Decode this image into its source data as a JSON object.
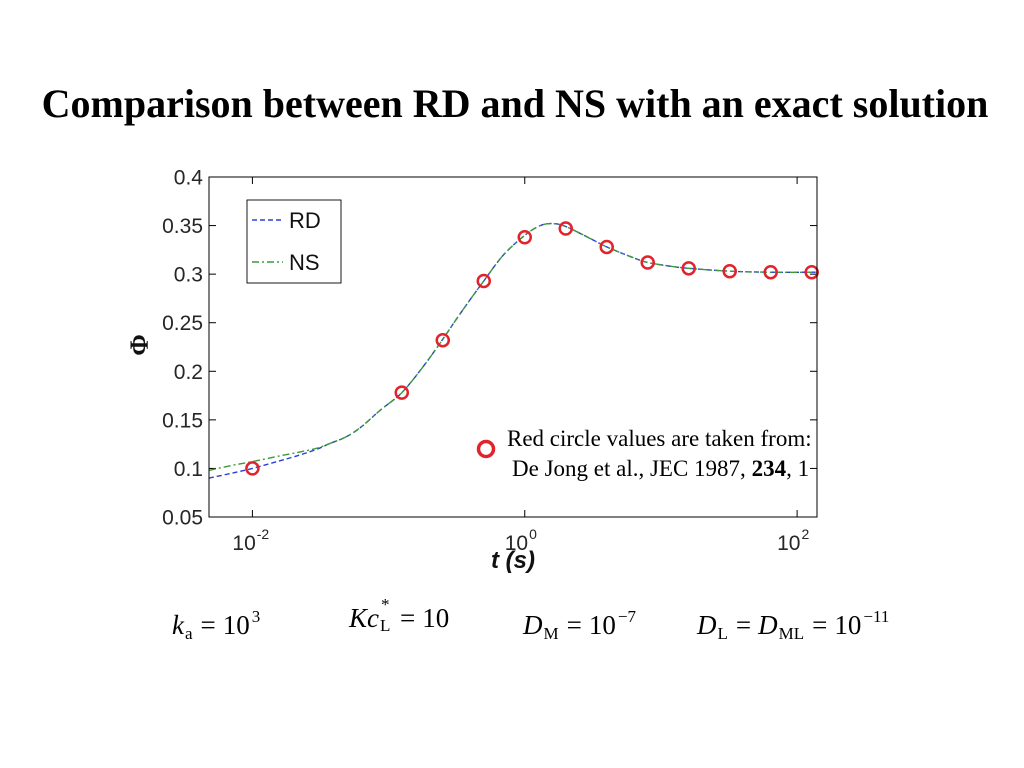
{
  "slide": {
    "title": "Comparison between RD and NS with an exact solution"
  },
  "chart_data": {
    "type": "line",
    "xlabel": "t (s)",
    "ylabel": "Φ",
    "xscale": "log",
    "xlim": [
      0.0048,
      140
    ],
    "ylim": [
      0.05,
      0.4
    ],
    "grid": false,
    "legend_position": "top-left",
    "xticks": [
      {
        "value": 0.01,
        "base": "10",
        "exp": "-2"
      },
      {
        "value": 1,
        "base": "10",
        "exp": "0"
      },
      {
        "value": 100,
        "base": "10",
        "exp": "2"
      }
    ],
    "yticks": [
      {
        "value": 0.05,
        "label": "0.05"
      },
      {
        "value": 0.1,
        "label": "0.1"
      },
      {
        "value": 0.15,
        "label": "0.15"
      },
      {
        "value": 0.2,
        "label": "0.2"
      },
      {
        "value": 0.25,
        "label": "0.25"
      },
      {
        "value": 0.3,
        "label": "0.3"
      },
      {
        "value": 0.35,
        "label": "0.35"
      },
      {
        "value": 0.4,
        "label": "0.4"
      }
    ],
    "series": [
      {
        "name": "RD",
        "dash": "dashed",
        "color": "#2a3fd6",
        "x": [
          0.0048,
          0.007,
          0.01,
          0.016,
          0.0225,
          0.03,
          0.0375,
          0.048,
          0.062,
          0.087,
          0.125,
          0.18,
          0.25,
          0.35,
          0.5,
          0.7,
          1,
          1.3,
          1.6,
          2,
          3,
          4,
          6,
          8,
          12,
          16,
          32,
          64,
          140
        ],
        "y": [
          0.09,
          0.095,
          0.1,
          0.108,
          0.114,
          0.12,
          0.126,
          0.132,
          0.142,
          0.16,
          0.178,
          0.205,
          0.233,
          0.263,
          0.293,
          0.32,
          0.34,
          0.35,
          0.352,
          0.349,
          0.337,
          0.328,
          0.318,
          0.312,
          0.308,
          0.306,
          0.303,
          0.302,
          0.302
        ]
      },
      {
        "name": "NS",
        "dash": "dash-dot",
        "color": "#3c9a3c",
        "x": [
          0.0048,
          0.007,
          0.01,
          0.016,
          0.0225,
          0.03,
          0.0375,
          0.048,
          0.062,
          0.087,
          0.125,
          0.18,
          0.25,
          0.35,
          0.5,
          0.7,
          1,
          1.3,
          1.6,
          2,
          3,
          4,
          6,
          8,
          12,
          16,
          32,
          64,
          140
        ],
        "y": [
          0.098,
          0.103,
          0.107,
          0.113,
          0.117,
          0.121,
          0.126,
          0.132,
          0.142,
          0.16,
          0.178,
          0.205,
          0.233,
          0.263,
          0.293,
          0.32,
          0.34,
          0.35,
          0.352,
          0.349,
          0.337,
          0.328,
          0.318,
          0.312,
          0.308,
          0.306,
          0.303,
          0.302,
          0.302
        ]
      }
    ],
    "reference_points": {
      "color": "#e3232b",
      "x": [
        0.01,
        0.125,
        0.25,
        0.5,
        1,
        2,
        4,
        8,
        16,
        32,
        64,
        128
      ],
      "y": [
        0.1,
        0.178,
        0.232,
        0.293,
        0.338,
        0.347,
        0.328,
        0.312,
        0.306,
        0.303,
        0.302,
        0.302
      ]
    },
    "annotation": {
      "line1": "Red circle values are taken from:",
      "line2_start": "De Jong et al., JEC 1987, ",
      "line2_bold": "234",
      "line2_end": ", 1"
    }
  },
  "equations": [
    {
      "symbol": "k",
      "sub": "a",
      "eq": "=",
      "value": "10",
      "sup": "3"
    },
    {
      "symbol": "Kc",
      "sup": "*",
      "sub": "L",
      "eq": "=",
      "value": "10"
    },
    {
      "symbol": "D",
      "sub": "M",
      "eq": "=",
      "value": "10",
      "sup": "−7"
    },
    {
      "symbol": "D",
      "sub": "L",
      "eq": "=",
      "symbol2": "D",
      "sub2": "ML",
      "eq2": "=",
      "value": "10",
      "sup": "−11"
    }
  ]
}
